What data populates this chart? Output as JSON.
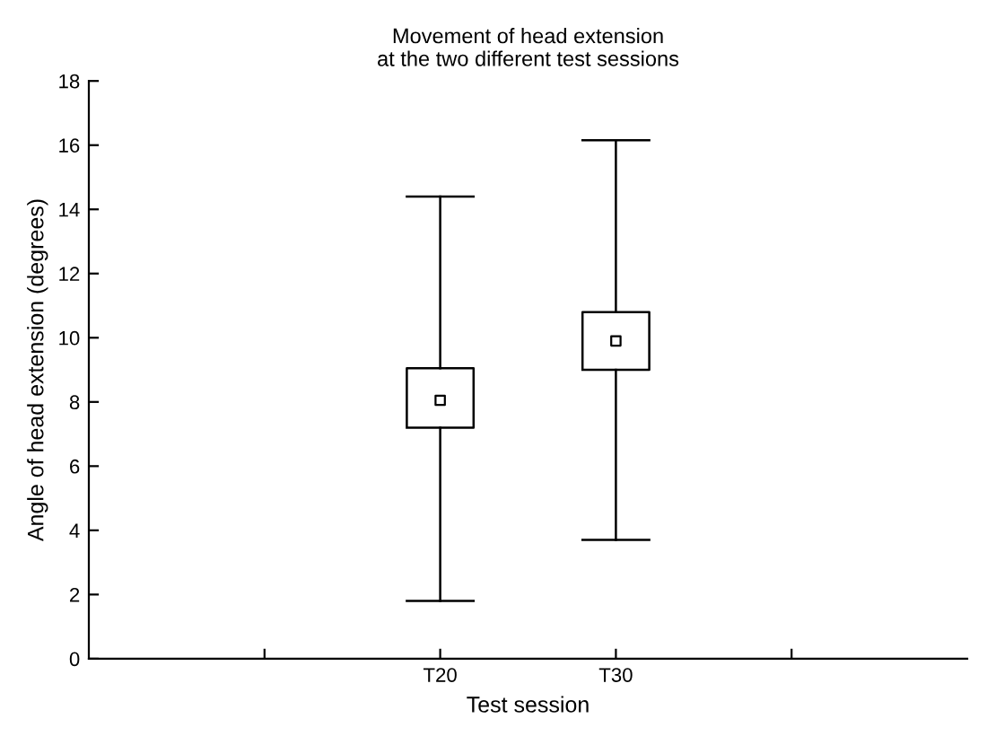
{
  "chart_data": {
    "type": "box",
    "title": "Movement of head extension\nat the two different test sessions",
    "xlabel": "Test session",
    "ylabel": "Angle of head extension (degrees)",
    "categories": [
      null,
      "T20",
      "T30",
      null
    ],
    "boxes": [
      null,
      {
        "low": 1.8,
        "q1": 7.2,
        "median": 8.05,
        "q3": 9.05,
        "high": 14.4
      },
      {
        "low": 3.7,
        "q1": 9.0,
        "median": 9.9,
        "q3": 10.8,
        "high": 16.15
      },
      null
    ],
    "ylim": [
      0,
      18
    ],
    "yticks": [
      0,
      2,
      4,
      6,
      8,
      10,
      12,
      14,
      16,
      18
    ],
    "marker": "square",
    "grid": false,
    "legend": false
  }
}
